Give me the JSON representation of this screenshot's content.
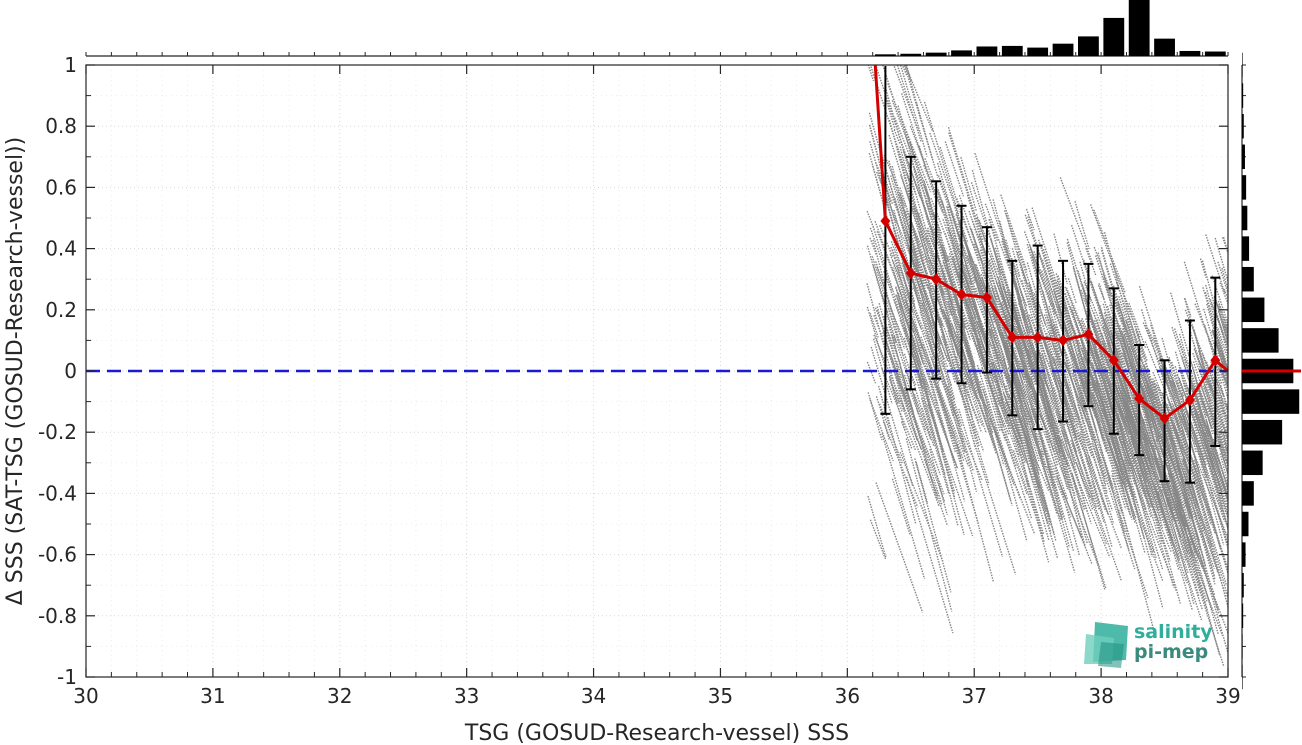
{
  "chart_data": {
    "type": "scatter",
    "xlabel": "TSG (GOSUD-Research-vessel) SSS",
    "ylabel": "Δ SSS (SAT-TSG (GOSUD-Research-vessel))",
    "xlim": [
      30,
      39
    ],
    "ylim": [
      -1,
      1
    ],
    "x_ticks": [
      "30",
      "31",
      "32",
      "33",
      "34",
      "35",
      "36",
      "37",
      "38",
      "39"
    ],
    "y_ticks": [
      "-1",
      "-0.8",
      "-0.6",
      "-0.4",
      "-0.2",
      "0",
      "0.2",
      "0.4",
      "0.6",
      "0.8",
      "1"
    ],
    "grid": true,
    "zero_line": {
      "y": 0,
      "style": "dashed",
      "color": "#1a1ad6"
    },
    "scatter_color": "#808080",
    "binned_mean": {
      "color": "#d40000",
      "x": [
        36.3,
        36.5,
        36.7,
        36.9,
        37.1,
        37.3,
        37.5,
        37.7,
        37.9,
        38.1,
        38.3,
        38.5,
        38.7,
        38.9
      ],
      "mean": [
        0.49,
        0.32,
        0.3,
        0.25,
        0.24,
        0.11,
        0.11,
        0.1,
        0.12,
        0.035,
        -0.09,
        -0.155,
        -0.095,
        0.035
      ],
      "upper": [
        1.01,
        0.7,
        0.62,
        0.54,
        0.47,
        0.36,
        0.41,
        0.36,
        0.35,
        0.27,
        0.085,
        0.035,
        0.165,
        0.305
      ],
      "lower": [
        -0.14,
        -0.06,
        -0.025,
        -0.04,
        -0.005,
        -0.145,
        -0.19,
        -0.165,
        -0.115,
        -0.205,
        -0.275,
        -0.36,
        -0.365,
        -0.245
      ],
      "leading_segment": {
        "x": [
          36.22,
          36.3
        ],
        "mean": [
          1.0,
          0.49
        ]
      },
      "trailing_segment": {
        "x": [
          38.9,
          39.0
        ],
        "mean": [
          0.035,
          0.0
        ]
      }
    },
    "top_histogram": {
      "bin_centers": [
        36.3,
        36.5,
        36.7,
        36.9,
        37.1,
        37.3,
        37.5,
        37.7,
        37.9,
        38.1,
        38.3,
        38.5,
        38.7,
        38.9
      ],
      "relative_counts": [
        0.03,
        0.04,
        0.06,
        0.1,
        0.17,
        0.18,
        0.15,
        0.22,
        0.35,
        0.68,
        1.0,
        0.31,
        0.09,
        0.08
      ]
    },
    "right_histogram": {
      "bin_centers": [
        1.0,
        0.9,
        0.8,
        0.7,
        0.6,
        0.5,
        0.4,
        0.3,
        0.2,
        0.1,
        0.0,
        -0.1,
        -0.2,
        -0.3,
        -0.4,
        -0.5,
        -0.6,
        -0.7,
        -0.8,
        -0.9,
        -1.0
      ],
      "relative_counts": [
        0.01,
        0.02,
        0.03,
        0.05,
        0.07,
        0.09,
        0.12,
        0.2,
        0.38,
        0.62,
        0.87,
        0.97,
        0.68,
        0.35,
        0.2,
        0.11,
        0.06,
        0.03,
        0.02,
        0.01,
        0.01
      ],
      "median_marker_y": 0,
      "median_color": "#d40000"
    },
    "logo": {
      "line1": "salinity",
      "line2": "pi-mep"
    }
  }
}
